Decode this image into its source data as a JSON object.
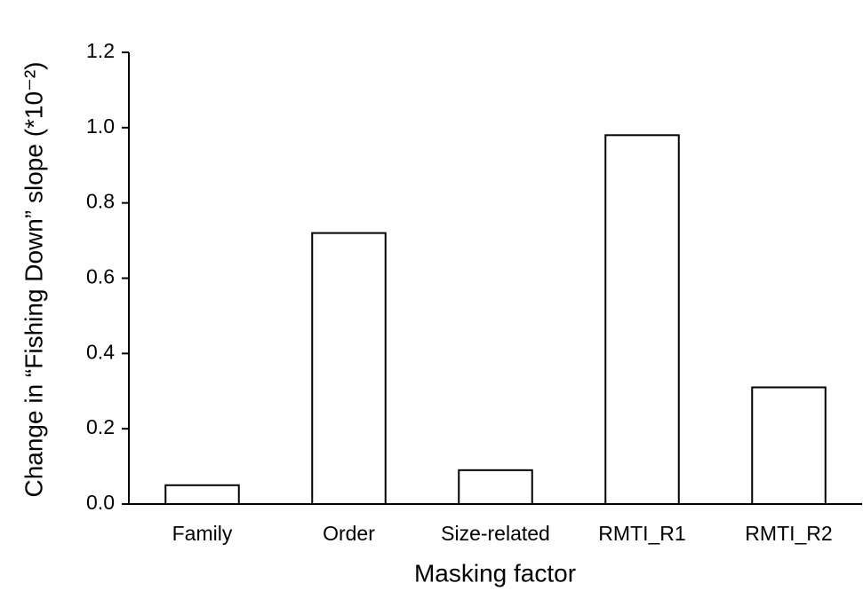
{
  "chart_data": {
    "type": "bar",
    "x_label": "Masking factor",
    "y_label": "Change in “Fishing Down” slope (*10⁻²)",
    "categories": [
      "Family",
      "Order",
      "Size-related",
      "RMTI_R1",
      "RMTI_R2"
    ],
    "values": [
      0.05,
      0.72,
      0.09,
      0.98,
      0.31
    ],
    "color": "#ffffff",
    "ylim": [
      0,
      1.2
    ],
    "yticks": [
      {
        "value": 0,
        "label": "0.0"
      },
      0.2,
      0.4,
      0.6,
      0.8,
      {
        "value": 1,
        "label": "1.0"
      },
      1.2
    ],
    "grid": false
  }
}
